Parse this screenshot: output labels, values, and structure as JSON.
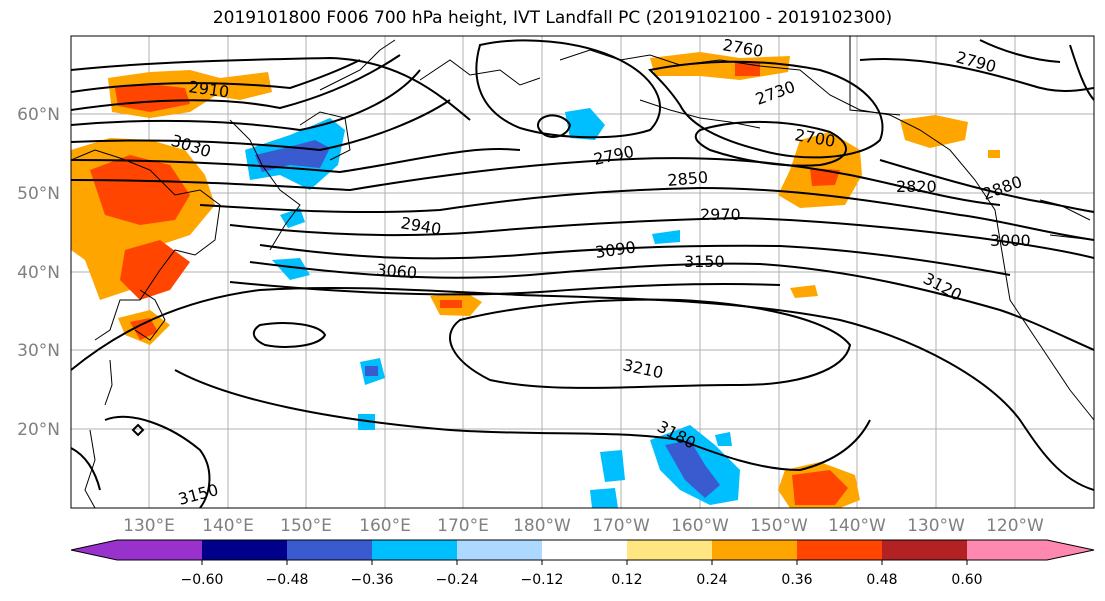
{
  "title": "2019101800 F006 700 hPa height, IVT Landfall PC (2019102100 - 2019102300)",
  "map": {
    "lat_ticks": [
      "60°N",
      "50°N",
      "40°N",
      "30°N",
      "20°N"
    ],
    "lon_ticks": [
      "130°E",
      "140°E",
      "150°E",
      "160°E",
      "170°E",
      "180°W",
      "170°W",
      "160°W",
      "150°W",
      "140°W",
      "130°W",
      "120°W"
    ],
    "contour_labels": [
      "2910",
      "3030",
      "2760",
      "2790",
      "2730",
      "2700",
      "2790",
      "2850",
      "2820",
      "2880",
      "2970",
      "2940",
      "3000",
      "3090",
      "3150",
      "3060",
      "3120",
      "3210",
      "3180",
      "3150"
    ]
  },
  "colorbar": {
    "ticks": [
      "−0.60",
      "−0.48",
      "−0.36",
      "−0.24",
      "−0.12",
      "0.12",
      "0.24",
      "0.36",
      "0.48",
      "0.60"
    ],
    "colors": [
      "#9932CC",
      "#00008B",
      "#3A5BD0",
      "#00BFFF",
      "#ADD8FF",
      "#FFFFFF",
      "#FFE680",
      "#FFA500",
      "#FF4500",
      "#B22222",
      "#FF88B0"
    ]
  }
}
